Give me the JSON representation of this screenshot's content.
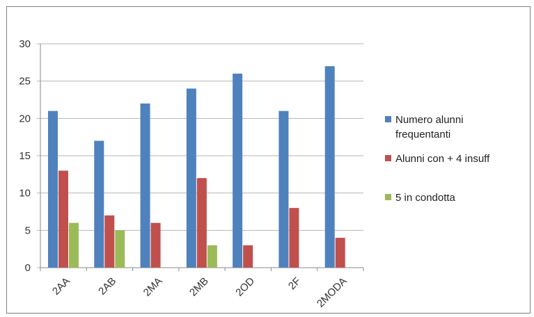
{
  "chart_data": {
    "type": "bar",
    "categories": [
      "2AA",
      "2AB",
      "2MA",
      "2MB",
      "2OD",
      "2F",
      "2MODA"
    ],
    "series": [
      {
        "name": "Numero alunni frequentanti",
        "color": "#4f81bd",
        "values": [
          21,
          17,
          22,
          24,
          26,
          21,
          27
        ]
      },
      {
        "name": "Alunni con + 4 insuff",
        "color": "#c0504d",
        "values": [
          13,
          7,
          6,
          12,
          3,
          8,
          4
        ]
      },
      {
        "name": "5  in condotta",
        "color": "#9bbb59",
        "values": [
          6,
          5,
          null,
          3,
          null,
          null,
          null
        ]
      }
    ],
    "legend_lines": [
      [
        "Numero alunni",
        "frequentanti"
      ],
      [
        "Alunni con + 4 insuff"
      ],
      [
        "5  in condotta"
      ]
    ],
    "yticks": [
      0,
      5,
      10,
      15,
      20,
      25,
      30
    ],
    "ylim": [
      0,
      30
    ],
    "grid": true,
    "legend_position": "right",
    "title": "",
    "xlabel": "",
    "ylabel": ""
  }
}
